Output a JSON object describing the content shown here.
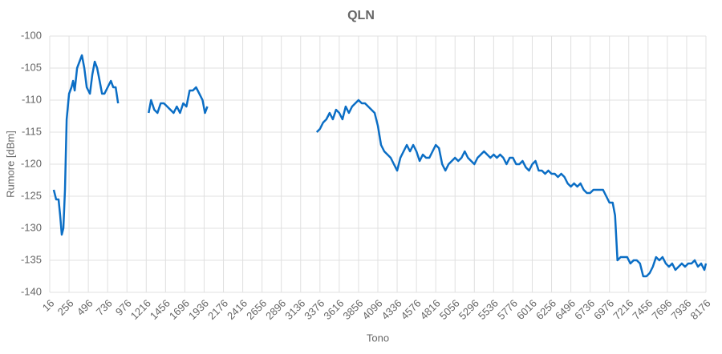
{
  "chart_data": {
    "type": "line",
    "title": "QLN",
    "x_label": "Tono",
    "y_label": "Rumore [dBm]",
    "color": "#0b6ec5",
    "grid": true,
    "x": [
      66,
      96,
      126,
      146,
      166,
      186,
      206,
      226,
      256,
      286,
      306,
      326,
      356,
      386,
      416,
      446,
      476,
      516,
      546,
      576,
      606,
      636,
      666,
      696,
      736,
      776,
      806,
      836,
      866,
      1000,
      1246,
      1276,
      1316,
      1356,
      1396,
      1436,
      1476,
      1516,
      1556,
      1596,
      1636,
      1676,
      1716,
      1756,
      1796,
      1836,
      1876,
      1916,
      1946,
      1976,
      2600,
      3336,
      3376,
      3416,
      3456,
      3496,
      3536,
      3576,
      3616,
      3656,
      3696,
      3736,
      3776,
      3816,
      3856,
      3896,
      3936,
      3976,
      4016,
      4056,
      4096,
      4136,
      4176,
      4216,
      4256,
      4296,
      4336,
      4376,
      4416,
      4456,
      4496,
      4536,
      4576,
      4616,
      4656,
      4696,
      4736,
      4776,
      4816,
      4856,
      4896,
      4936,
      4976,
      5016,
      5056,
      5096,
      5136,
      5176,
      5216,
      5256,
      5296,
      5336,
      5376,
      5416,
      5456,
      5496,
      5536,
      5576,
      5616,
      5656,
      5696,
      5736,
      5776,
      5816,
      5856,
      5896,
      5936,
      5976,
      6016,
      6056,
      6096,
      6136,
      6176,
      6216,
      6256,
      6296,
      6336,
      6376,
      6416,
      6456,
      6496,
      6536,
      6576,
      6616,
      6656,
      6696,
      6736,
      6776,
      6816,
      6856,
      6896,
      6936,
      6976,
      7016,
      7046,
      7076,
      7116,
      7156,
      7196,
      7236,
      7276,
      7316,
      7356,
      7396,
      7436,
      7476,
      7516,
      7556,
      7596,
      7636,
      7676,
      7716,
      7756,
      7796,
      7836,
      7876,
      7916,
      7956,
      7996,
      8036,
      8076,
      8116,
      8156,
      8176
    ],
    "values": [
      -124,
      -125.5,
      -125.5,
      -128,
      -131,
      -130,
      -124,
      -113,
      -109,
      -108,
      -107,
      -108.5,
      -105,
      -104,
      -103,
      -105,
      -108,
      -109,
      -106,
      -104,
      -105,
      -107,
      -109,
      -109,
      -108,
      -107,
      -108,
      -108,
      -110.5,
      null,
      -112,
      -110,
      -111.5,
      -112,
      -110.5,
      -110.5,
      -111,
      -111.5,
      -112,
      -111,
      -112,
      -110.5,
      -111,
      -108.5,
      -108.5,
      -108,
      -109,
      -110,
      -112,
      -111,
      null,
      -115,
      -114.5,
      -113.5,
      -113,
      -112,
      -113,
      -111.5,
      -112,
      -113,
      -111,
      -112,
      -111,
      -110.5,
      -110,
      -110.5,
      -110.5,
      -111,
      -111.5,
      -112,
      -114,
      -117,
      -118,
      -118.5,
      -119,
      -120,
      -121,
      -119,
      -118,
      -117,
      -118,
      -117,
      -118,
      -119.5,
      -118.5,
      -119,
      -119,
      -118,
      -117,
      -117.5,
      -120,
      -121,
      -120,
      -119.5,
      -119,
      -119.5,
      -119,
      -118,
      -119,
      -119.5,
      -120,
      -119,
      -118.5,
      -118,
      -118.5,
      -119,
      -118.5,
      -119,
      -118.5,
      -119,
      -120,
      -119,
      -119,
      -120,
      -120,
      -119.5,
      -120.5,
      -121,
      -120,
      -119.5,
      -121,
      -121,
      -121.5,
      -121,
      -121.5,
      -121.5,
      -122,
      -121.5,
      -122,
      -123,
      -123.5,
      -123,
      -123.5,
      -123,
      -124,
      -124.5,
      -124.5,
      -124,
      -124,
      -124,
      -124,
      -125,
      -126,
      -126,
      -128,
      -135,
      -134.5,
      -134.5,
      -134.5,
      -135.5,
      -135,
      -135,
      -135.5,
      -137.5,
      -137.5,
      -137,
      -136,
      -134.5,
      -135,
      -134.5,
      -135.5,
      -136,
      -135.5,
      -136.5,
      -136,
      -135.5,
      -136,
      -135.5,
      -135.5,
      -135,
      -136,
      -135.5,
      -136.5,
      -135.5
    ],
    "xlim": [
      16,
      8176
    ],
    "xticks": [
      16,
      256,
      496,
      736,
      976,
      1216,
      1456,
      1696,
      1936,
      2176,
      2416,
      2656,
      2896,
      3136,
      3376,
      3616,
      3856,
      4096,
      4336,
      4576,
      4816,
      5056,
      5296,
      5536,
      5776,
      6016,
      6256,
      6496,
      6736,
      6976,
      7216,
      7456,
      7696,
      7936,
      8176
    ],
    "ylim": [
      -140,
      -100
    ],
    "yticks": [
      -100,
      -105,
      -110,
      -115,
      -120,
      -125,
      -130,
      -135,
      -140
    ]
  }
}
